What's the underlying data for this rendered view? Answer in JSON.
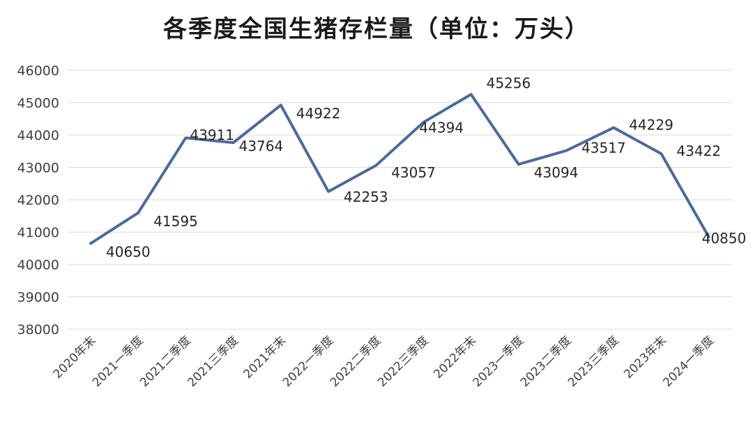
{
  "chart_data": {
    "type": "line",
    "title": "各季度全国生猪存栏量（单位：万头）",
    "xlabel": "",
    "ylabel": "",
    "categories": [
      "2020年末",
      "2021一季度",
      "2021二季度",
      "2021三季度",
      "2021年末",
      "2022一季度",
      "2022二季度",
      "2022三季度",
      "2022年末",
      "2023一季度",
      "2023二季度",
      "2023三季度",
      "2023年末",
      "2024一季度"
    ],
    "series": [
      {
        "values": [
          40650,
          41595,
          43911,
          43764,
          44922,
          42253,
          43057,
          44394,
          45256,
          43094,
          43517,
          44229,
          43422,
          40850
        ]
      }
    ],
    "ylim": [
      38000,
      46000
    ],
    "yticks": [
      38000,
      39000,
      40000,
      41000,
      42000,
      43000,
      44000,
      45000,
      46000
    ],
    "grid": true,
    "legend": "none",
    "line_color": "#4a6a9c",
    "grid_color": "#d9d9d9"
  }
}
